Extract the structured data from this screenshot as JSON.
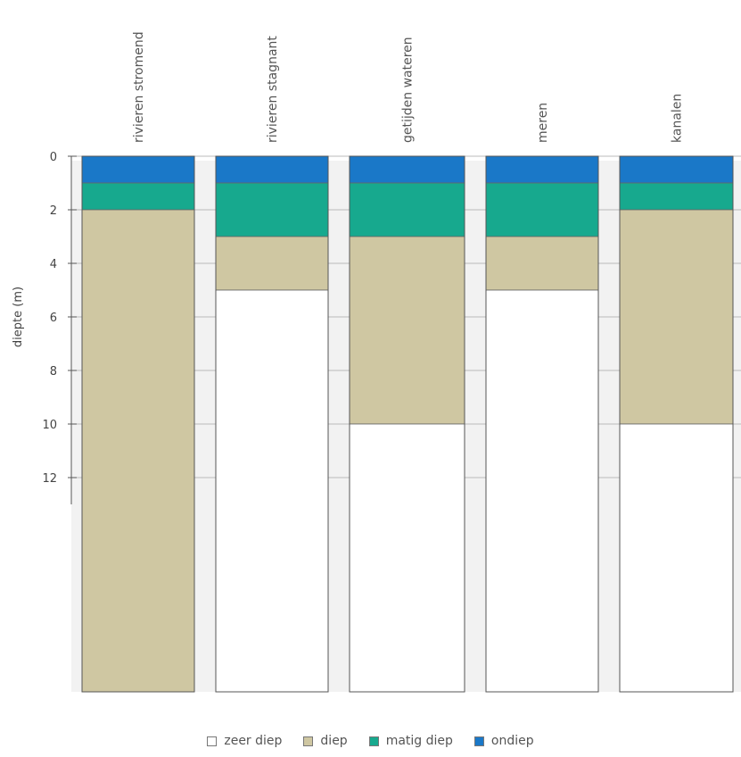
{
  "chart_data": {
    "type": "bar",
    "stacked": true,
    "ylabel": "diepte (m)",
    "y_ticks": [
      0,
      2,
      4,
      6,
      8,
      10,
      12
    ],
    "y_axis_inverted": true,
    "ylim": [
      0,
      20
    ],
    "categories": [
      "rivieren stromend",
      "rivieren stagnant",
      "getijden wateren",
      "meren",
      "kanalen"
    ],
    "series": [
      {
        "name": "ondiep",
        "color": "#1a78c8",
        "from": [
          0,
          0,
          0,
          0,
          0
        ],
        "to": [
          1,
          1,
          1,
          1,
          1
        ]
      },
      {
        "name": "matig diep",
        "color": "#17a98e",
        "from": [
          1,
          1,
          1,
          1,
          1
        ],
        "to": [
          2,
          3,
          3,
          3,
          2
        ]
      },
      {
        "name": "diep",
        "color": "#cfc7a2",
        "from": [
          2,
          3,
          3,
          3,
          2
        ],
        "to": [
          20,
          5,
          10,
          5,
          10
        ]
      },
      {
        "name": "zeer diep",
        "color": "#ffffff",
        "from": [
          20,
          5,
          10,
          5,
          10
        ],
        "to": [
          20,
          20,
          20,
          20,
          20
        ]
      }
    ],
    "legend_order": [
      "zeer diep",
      "diep",
      "matig diep",
      "ondiep"
    ],
    "legend_position": "bottom"
  }
}
